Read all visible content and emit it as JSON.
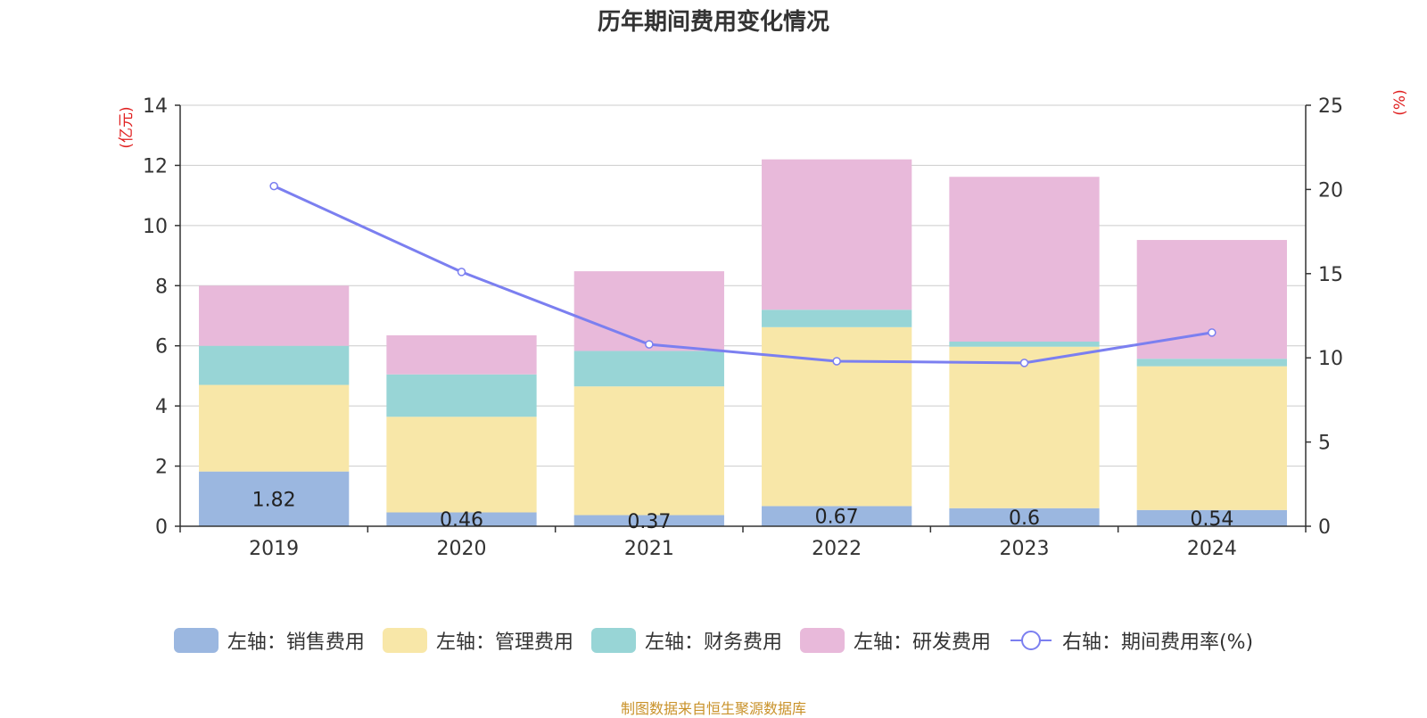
{
  "chart_data": {
    "type": "bar",
    "title": "历年期间费用变化情况",
    "categories": [
      "2019",
      "2020",
      "2021",
      "2022",
      "2023",
      "2024"
    ],
    "left_axis": {
      "unit_label": "(亿元)",
      "ylim": [
        0,
        14
      ],
      "ticks": [
        "0",
        "2",
        "4",
        "6",
        "8",
        "10",
        "12",
        "14"
      ]
    },
    "right_axis": {
      "unit_label": "(%)",
      "ylim": [
        0,
        25
      ],
      "ticks": [
        "0",
        "5",
        "10",
        "15",
        "20",
        "25"
      ]
    },
    "grid": true,
    "stacked": true,
    "series": [
      {
        "name": "左轴：销售费用",
        "axis": "left",
        "type": "bar",
        "color": "#9bb7e0",
        "values": [
          1.82,
          0.46,
          0.37,
          0.67,
          0.6,
          0.54
        ],
        "labels": [
          "1.82",
          "0.46",
          "0.37",
          "0.67",
          "0.6",
          "0.54"
        ]
      },
      {
        "name": "左轴：管理费用",
        "axis": "left",
        "type": "bar",
        "color": "#f8e7a8",
        "values": [
          2.88,
          3.18,
          4.28,
          5.95,
          5.37,
          4.78
        ]
      },
      {
        "name": "左轴：财务费用",
        "axis": "left",
        "type": "bar",
        "color": "#98d5d6",
        "values": [
          1.3,
          1.41,
          1.18,
          0.58,
          0.17,
          0.25
        ]
      },
      {
        "name": "左轴：研发费用",
        "axis": "left",
        "type": "bar",
        "color": "#e8b9da",
        "values": [
          2.0,
          1.3,
          2.65,
          5.0,
          5.48,
          3.95
        ]
      },
      {
        "name": "右轴：期间费用率(%)",
        "axis": "right",
        "type": "line",
        "color": "#7b7ff0",
        "values": [
          20.2,
          15.1,
          10.8,
          9.8,
          9.7,
          11.5
        ]
      }
    ],
    "legend_position": "bottom"
  },
  "source_note": "制图数据来自恒生聚源数据库"
}
